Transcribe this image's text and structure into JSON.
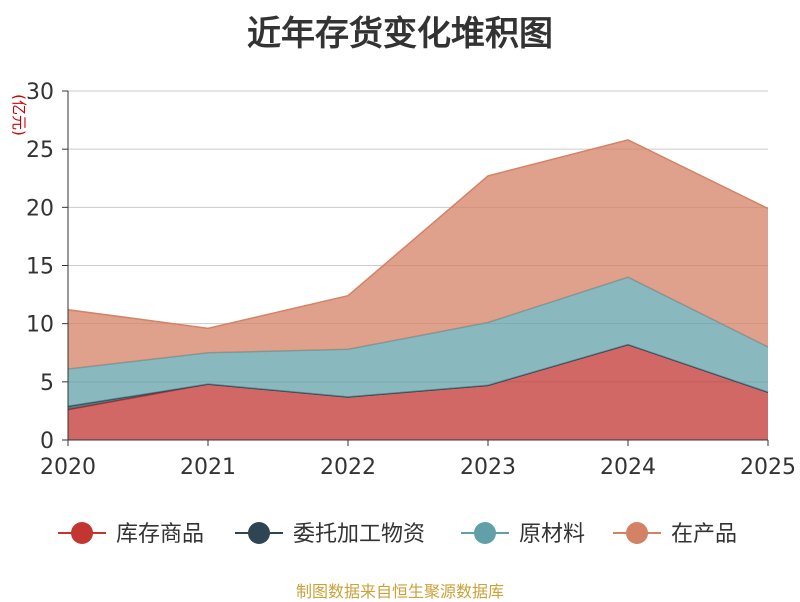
{
  "chart_data": {
    "type": "area",
    "stacked": true,
    "title": "近年存货变化堆积图",
    "ylabel": "(亿元)",
    "xlabel": "",
    "x": [
      "2020",
      "2021",
      "2022",
      "2023",
      "2024",
      "2025"
    ],
    "yticks": [
      "0",
      "5",
      "10",
      "15",
      "20",
      "25",
      "30"
    ],
    "ylim": [
      0,
      30
    ],
    "grid": true,
    "legend_position": "bottom",
    "series": [
      {
        "name": "库存商品",
        "color": "#c23531",
        "values": [
          2.6,
          4.8,
          3.7,
          4.7,
          8.2,
          4.1
        ]
      },
      {
        "name": "委托加工物资",
        "color": "#2f4554",
        "values": [
          0.3,
          0.0,
          0.0,
          0.0,
          0.0,
          0.0
        ]
      },
      {
        "name": "原材料",
        "color": "#61a0a8",
        "values": [
          3.2,
          2.7,
          4.1,
          5.4,
          5.8,
          3.9
        ]
      },
      {
        "name": "在产品",
        "color": "#d48265",
        "values": [
          5.1,
          2.1,
          4.6,
          12.6,
          11.8,
          11.9
        ]
      }
    ],
    "source": "制图数据来自恒生聚源数据库"
  }
}
